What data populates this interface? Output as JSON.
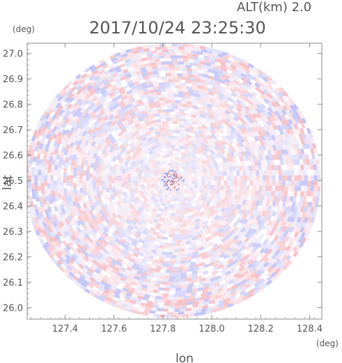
{
  "header": {
    "altitude_label": "ALT(km) 2.0",
    "timestamp": "2017/10/24 23:25:30"
  },
  "chart_data": {
    "type": "heatmap",
    "title": "2017/10/24 23:25:30",
    "annotation": "ALT(km) 2.0",
    "xlabel": "lon",
    "ylabel": "lat",
    "xunit": "(deg)",
    "yunit": "(deg)",
    "xlim": [
      127.245,
      128.45
    ],
    "ylim": [
      25.955,
      27.04
    ],
    "xticks": [
      127.4,
      127.6,
      127.8,
      128.0,
      128.2,
      128.4
    ],
    "xtick_labels": [
      "127.4",
      "127.6",
      "127.8",
      "128.0",
      "128.2",
      "128.4"
    ],
    "yticks": [
      26.0,
      26.1,
      26.2,
      26.3,
      26.4,
      26.5,
      26.6,
      26.7,
      26.8,
      26.9,
      27.0
    ],
    "ytick_labels": [
      "26.0",
      "26.1",
      "26.2",
      "26.3",
      "26.4",
      "26.5",
      "26.6",
      "26.7",
      "26.8",
      "26.9",
      "27.0"
    ],
    "radar_center": {
      "lon": 127.84,
      "lat": 26.5
    },
    "radar_radius_deg": {
      "lon": 0.605,
      "lat": 0.54
    },
    "colors": {
      "positive": "#f4a0a8",
      "negative": "#a8b0f4",
      "neutral": "#ffffff"
    },
    "grid": false,
    "legend": "none"
  }
}
